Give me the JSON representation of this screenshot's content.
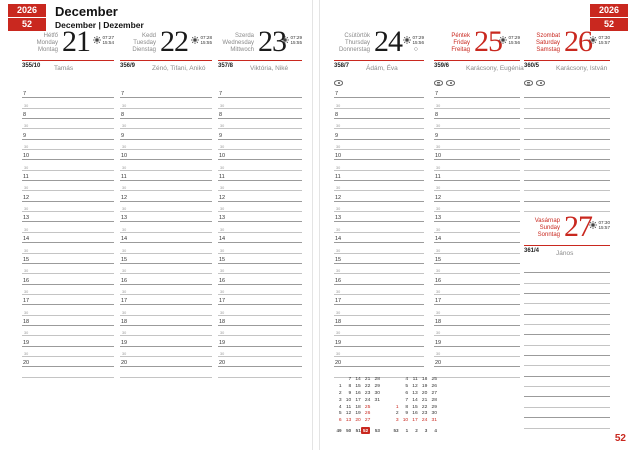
{
  "colors": {
    "accent": "#c9281f",
    "gray_text": "#8a8a8a",
    "dark_text": "#1a1a1a",
    "hour_line": "#9b9b9b",
    "half_line": "#c4c4c4"
  },
  "header": {
    "year": "2026",
    "week": "52",
    "title": "December",
    "subtitle": "December | Dezember"
  },
  "page_number": "52",
  "hours": [
    "7",
    "8",
    "9",
    "10",
    "11",
    "12",
    "13",
    "14",
    "15",
    "16",
    "17",
    "18",
    "19",
    "20"
  ],
  "half_label": "30",
  "days": [
    {
      "hu": "Hétfő",
      "en": "Monday",
      "de": "Montag",
      "num": "21",
      "sunrise": "07:27",
      "sunset": "15:54",
      "doy": "355/10",
      "names": "Tamás",
      "holiday": false,
      "moon": false,
      "icons": []
    },
    {
      "hu": "Kedd",
      "en": "Tuesday",
      "de": "Dienstag",
      "num": "22",
      "sunrise": "07:28",
      "sunset": "15:55",
      "doy": "356/9",
      "names": "Zénó, Tifani, Anikó",
      "holiday": false,
      "moon": false,
      "icons": []
    },
    {
      "hu": "Szerda",
      "en": "Wednesday",
      "de": "Mittwoch",
      "num": "23",
      "sunrise": "07:29",
      "sunset": "15:55",
      "doy": "357/8",
      "names": "Viktória, Niké",
      "holiday": false,
      "moon": false,
      "icons": []
    },
    {
      "hu": "Csütörtök",
      "en": "Thursday",
      "de": "Donnerstag",
      "num": "24",
      "sunrise": "07:29",
      "sunset": "15:56",
      "doy": "358/7",
      "names": "Ádám, Éva",
      "holiday": false,
      "moon": true,
      "icons": [
        "dot"
      ]
    },
    {
      "hu": "Péntek",
      "en": "Friday",
      "de": "Freitag",
      "num": "25",
      "sunrise": "07:29",
      "sunset": "15:56",
      "doy": "359/6",
      "names": "Karácsony, Eugénia",
      "holiday": true,
      "moon": false,
      "icons": [
        "lines",
        "dot"
      ]
    },
    {
      "hu": "Szombat",
      "en": "Saturday",
      "de": "Samstag",
      "num": "26",
      "sunrise": "07:30",
      "sunset": "15:57",
      "doy": "360/5",
      "names": "Karácsony, István",
      "holiday": true,
      "moon": false,
      "icons": [
        "lines",
        "dot"
      ]
    },
    {
      "hu": "Vasárnap",
      "en": "Sunday",
      "de": "Sonntag",
      "num": "27",
      "sunrise": "07:30",
      "sunset": "15:57",
      "doy": "361/4",
      "names": "János",
      "holiday": true,
      "moon": false,
      "icons": []
    }
  ],
  "layout_note": "columns Mon-Fri have timed slots 7-20 with 30-min lines; Sat top half and Sun bottom half share last column with unruled lines",
  "minical": {
    "months": [
      {
        "rows": [
          [
            "",
            "7",
            "14",
            "21",
            "28"
          ],
          [
            "1",
            "8",
            "15",
            "22",
            "29"
          ],
          [
            "2",
            "9",
            "16",
            "23",
            "30"
          ],
          [
            "3",
            "10",
            "17",
            "24",
            "31"
          ],
          [
            "4",
            "11",
            "18",
            "25",
            ""
          ],
          [
            "5",
            "12",
            "19",
            "26",
            ""
          ],
          [
            "6",
            "13",
            "20",
            "27",
            ""
          ]
        ],
        "red_days": [
          "25",
          "26",
          "6",
          "13",
          "20",
          "27"
        ],
        "weeks": [
          "49",
          "50",
          "51",
          "52",
          "53"
        ],
        "current_week": "52"
      },
      {
        "rows": [
          [
            "",
            "4",
            "11",
            "18",
            "25"
          ],
          [
            "",
            "5",
            "12",
            "19",
            "26"
          ],
          [
            "",
            "6",
            "13",
            "20",
            "27"
          ],
          [
            "",
            "7",
            "14",
            "21",
            "28"
          ],
          [
            "1",
            "8",
            "15",
            "22",
            "29"
          ],
          [
            "2",
            "9",
            "16",
            "23",
            "30"
          ],
          [
            "3",
            "10",
            "17",
            "24",
            "31"
          ]
        ],
        "red_days": [
          "1",
          "3",
          "10",
          "17",
          "24",
          "31"
        ],
        "weeks": [
          "53",
          "1",
          "2",
          "3",
          "4"
        ],
        "current_week": ""
      }
    ]
  }
}
